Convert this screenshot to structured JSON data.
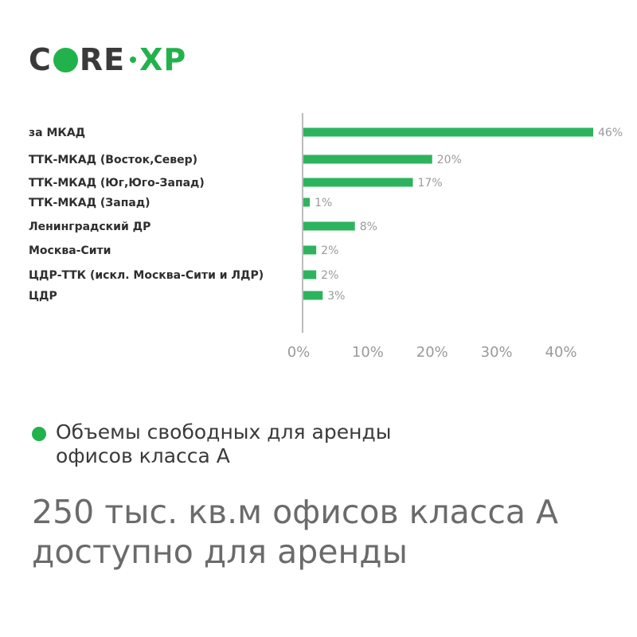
{
  "logo": {
    "part1": "C",
    "part2": "RE",
    "part3": "XP",
    "brand_color": "#22b24c",
    "text_color": "#3a3a3a"
  },
  "colors": {
    "bar": "#2db35e",
    "axis": "#bdbdbd",
    "tick_text": "#9a9a9a",
    "label_text": "#2e2e2e"
  },
  "chart_data": {
    "type": "bar",
    "orientation": "horizontal",
    "categories": [
      "за МКАД",
      "ТТК-МКАД (Восток,Север)",
      "ТТК-МКАД (Юг,Юго-Запад)",
      "ТТК-МКАД (Запад)",
      "Ленинградский ДР",
      "Москва-Сити",
      "ЦДР-ТТК (искл. Москва-Сити и ЛДР)",
      "ЦДР"
    ],
    "values": [
      46,
      20,
      17,
      1,
      8,
      2,
      2,
      3
    ],
    "value_labels": [
      "46%",
      "20%",
      "17%",
      "1%",
      "8%",
      "2%",
      "2%",
      "3%"
    ],
    "xlim": [
      0,
      45
    ],
    "xticks": [
      0,
      10,
      20,
      30,
      40
    ],
    "xtick_labels": [
      "0%",
      "10%",
      "20%",
      "30%",
      "40%"
    ],
    "grid": false
  },
  "legend": {
    "text_line1": "Объемы свободных для аренды",
    "text_line2": "офисов класса А"
  },
  "headline": {
    "line1": "250 тыс. кв.м офисов класса А",
    "line2": "доступно для аренды"
  }
}
